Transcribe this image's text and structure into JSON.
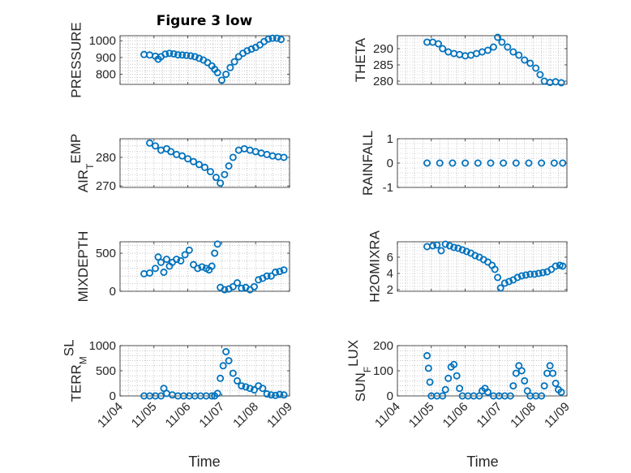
{
  "title": "Figure 3 low",
  "xlabel": "Time",
  "marker_color": "#0072BD",
  "x_tick_labels": [
    "11/04",
    "11/05",
    "11/06",
    "11/07",
    "11/08",
    "11/09"
  ],
  "chart_data": [
    {
      "type": "scatter",
      "ylabel": "PRESSURE",
      "ylim": [
        740,
        1030
      ],
      "yticks": [
        800,
        900,
        1000
      ],
      "yticklabels": [
        "800",
        "900",
        "1000"
      ],
      "grid": true,
      "x": [
        "11/04 17:00",
        "11/04 21:00",
        "11/05 01:00",
        "11/05 03:00",
        "11/05 05:00",
        "11/05 08:00",
        "11/05 11:00",
        "11/05 14:00",
        "11/05 17:00",
        "11/05 20:00",
        "11/05 23:00",
        "11/06 02:00",
        "11/06 05:00",
        "11/06 08:00",
        "11/06 11:00",
        "11/06 14:00",
        "11/06 17:00",
        "11/06 19:00",
        "11/06 21:00",
        "11/07 00:00",
        "11/07 03:00",
        "11/07 06:00",
        "11/07 09:00",
        "11/07 12:00",
        "11/07 15:00",
        "11/07 18:00",
        "11/07 21:00",
        "11/08 00:00",
        "11/08 03:00",
        "11/08 06:00",
        "11/08 09:00",
        "11/08 12:00",
        "11/08 15:00",
        "11/08 18:00"
      ],
      "y": [
        918,
        915,
        908,
        890,
        905,
        920,
        925,
        922,
        916,
        915,
        913,
        910,
        905,
        895,
        885,
        870,
        850,
        830,
        810,
        765,
        800,
        840,
        875,
        905,
        925,
        940,
        950,
        960,
        975,
        995,
        1010,
        1015,
        1015,
        1008
      ]
    },
    {
      "type": "scatter",
      "ylabel": "THETA",
      "ylim": [
        279,
        294
      ],
      "yticks": [
        280,
        285,
        290
      ],
      "yticklabels": [
        "280",
        "285",
        "290"
      ],
      "grid": true,
      "x": [
        "11/04 21:00",
        "11/05 01:00",
        "11/05 05:00",
        "11/05 08:00",
        "11/05 12:00",
        "11/05 16:00",
        "11/05 20:00",
        "11/06 00:00",
        "11/06 04:00",
        "11/06 08:00",
        "11/06 12:00",
        "11/06 16:00",
        "11/06 20:00",
        "11/06 23:00",
        "11/07 02:00",
        "11/07 06:00",
        "11/07 10:00",
        "11/07 14:00",
        "11/07 18:00",
        "11/07 22:00",
        "11/08 02:00",
        "11/08 05:00",
        "11/08 08:00",
        "11/08 12:00",
        "11/08 16:00",
        "11/08 20:00"
      ],
      "y": [
        292,
        292,
        291.5,
        290,
        289,
        288.5,
        288.2,
        287.8,
        288,
        288.5,
        289,
        289.5,
        290.5,
        293.5,
        292,
        290.5,
        289,
        288,
        286.5,
        285.5,
        284,
        282,
        280,
        279.6,
        279.8,
        279.5
      ]
    },
    {
      "type": "scatter",
      "ylabel": "AIR_TEMP",
      "ylim": [
        269.5,
        286.5
      ],
      "yticks": [
        270,
        280
      ],
      "yticklabels": [
        "270",
        "280"
      ],
      "grid": true,
      "x": [
        "11/04 21:00",
        "11/05 01:00",
        "11/05 05:00",
        "11/05 09:00",
        "11/05 12:00",
        "11/05 16:00",
        "11/05 20:00",
        "11/06 00:00",
        "11/06 04:00",
        "11/06 08:00",
        "11/06 12:00",
        "11/06 16:00",
        "11/06 20:00",
        "11/06 23:00",
        "11/07 02:00",
        "11/07 05:00",
        "11/07 08:00",
        "11/07 12:00",
        "11/07 16:00",
        "11/07 20:00",
        "11/08 00:00",
        "11/08 04:00",
        "11/08 08:00",
        "11/08 12:00",
        "11/08 16:00",
        "11/08 20:00"
      ],
      "y": [
        285,
        284,
        282.5,
        283,
        282,
        281,
        280.5,
        279.5,
        278.5,
        277.5,
        276.5,
        275,
        273,
        271,
        274,
        277,
        280,
        282.5,
        283,
        282.5,
        282,
        281.5,
        281,
        280.5,
        280.2,
        280
      ]
    },
    {
      "type": "scatter",
      "ylabel": "RAINFALL",
      "ylim": [
        -1,
        1
      ],
      "yticks": [
        -1,
        0,
        1
      ],
      "yticklabels": [
        "-1",
        "0",
        "1"
      ],
      "grid": true,
      "x": [
        "11/04 21:00",
        "11/05 06:00",
        "11/05 15:00",
        "11/06 00:00",
        "11/06 09:00",
        "11/06 18:00",
        "11/07 03:00",
        "11/07 12:00",
        "11/07 21:00",
        "11/08 06:00",
        "11/08 15:00",
        "11/08 21:00"
      ],
      "y": [
        0,
        0,
        0,
        0,
        0,
        0,
        0,
        0,
        0,
        0,
        0,
        0
      ]
    },
    {
      "type": "scatter",
      "ylabel": "MIXDEPTH",
      "ylim": [
        0,
        650
      ],
      "yticks": [
        0,
        500
      ],
      "yticklabels": [
        "0",
        "500"
      ],
      "grid": true,
      "x": [
        "11/04 17:00",
        "11/04 21:00",
        "11/05 01:00",
        "11/05 03:00",
        "11/05 05:00",
        "11/05 07:00",
        "11/05 09:00",
        "11/05 11:00",
        "11/05 13:00",
        "11/05 16:00",
        "11/05 19:00",
        "11/05 22:00",
        "11/06 01:00",
        "11/06 04:00",
        "11/06 07:00",
        "11/06 10:00",
        "11/06 13:00",
        "11/06 15:00",
        "11/06 17:00",
        "11/06 19:00",
        "11/06 21:00",
        "11/06 23:00",
        "11/07 02:00",
        "11/07 05:00",
        "11/07 08:00",
        "11/07 11:00",
        "11/07 14:00",
        "11/07 17:00",
        "11/07 20:00",
        "11/07 23:00",
        "11/08 02:00",
        "11/08 05:00",
        "11/08 08:00",
        "11/08 11:00",
        "11/08 14:00",
        "11/08 17:00",
        "11/08 20:00"
      ],
      "y": [
        230,
        240,
        300,
        450,
        380,
        250,
        420,
        330,
        380,
        420,
        400,
        480,
        540,
        350,
        300,
        320,
        300,
        280,
        330,
        500,
        620,
        50,
        20,
        30,
        60,
        110,
        40,
        50,
        20,
        60,
        150,
        170,
        200,
        200,
        250,
        260,
        280
      ]
    },
    {
      "type": "scatter",
      "ylabel": "H2OMIXRA",
      "ylim": [
        1.8,
        7.9
      ],
      "yticks": [
        2,
        4,
        6
      ],
      "yticklabels": [
        "2",
        "4",
        "6"
      ],
      "grid": true,
      "x": [
        "11/04 21:00",
        "11/05 01:00",
        "11/05 04:00",
        "11/05 07:00",
        "11/05 10:00",
        "11/05 13:00",
        "11/05 16:00",
        "11/05 19:00",
        "11/05 22:00",
        "11/06 01:00",
        "11/06 04:00",
        "11/06 07:00",
        "11/06 10:00",
        "11/06 13:00",
        "11/06 16:00",
        "11/06 19:00",
        "11/06 21:00",
        "11/06 23:00",
        "11/07 01:00",
        "11/07 04:00",
        "11/07 07:00",
        "11/07 10:00",
        "11/07 13:00",
        "11/07 16:00",
        "11/07 19:00",
        "11/07 22:00",
        "11/08 01:00",
        "11/08 04:00",
        "11/08 07:00",
        "11/08 10:00",
        "11/08 13:00",
        "11/08 16:00",
        "11/08 19:00",
        "11/08 21:00"
      ],
      "y": [
        7.3,
        7.4,
        7.5,
        6.8,
        7.6,
        7.4,
        7.2,
        7.1,
        6.9,
        6.7,
        6.5,
        6.2,
        6.0,
        5.7,
        5.4,
        5.0,
        4.5,
        3.5,
        2.2,
        2.8,
        3.0,
        3.2,
        3.5,
        3.7,
        3.8,
        3.9,
        3.9,
        4.0,
        4.1,
        4.2,
        4.5,
        4.9,
        5.0,
        4.9
      ]
    },
    {
      "type": "scatter",
      "ylabel": "TERR_MSL",
      "ylim": [
        0,
        1000
      ],
      "yticks": [
        0,
        500,
        1000
      ],
      "yticklabels": [
        "0",
        "500",
        "1000"
      ],
      "grid": true,
      "x": [
        "11/04 17:00",
        "11/04 21:00",
        "11/05 01:00",
        "11/05 05:00",
        "11/05 07:00",
        "11/05 09:00",
        "11/05 13:00",
        "11/05 17:00",
        "11/05 21:00",
        "11/06 01:00",
        "11/06 05:00",
        "11/06 09:00",
        "11/06 13:00",
        "11/06 17:00",
        "11/06 19:00",
        "11/06 21:00",
        "11/06 23:00",
        "11/07 01:00",
        "11/07 03:00",
        "11/07 05:00",
        "11/07 08:00",
        "11/07 11:00",
        "11/07 14:00",
        "11/07 17:00",
        "11/07 20:00",
        "11/07 23:00",
        "11/08 02:00",
        "11/08 05:00",
        "11/08 08:00",
        "11/08 11:00",
        "11/08 14:00",
        "11/08 17:00",
        "11/08 20:00"
      ],
      "y": [
        0,
        0,
        0,
        0,
        150,
        50,
        20,
        0,
        0,
        0,
        0,
        0,
        0,
        0,
        0,
        50,
        350,
        600,
        880,
        700,
        450,
        300,
        200,
        180,
        150,
        120,
        200,
        150,
        40,
        20,
        10,
        30,
        20
      ]
    },
    {
      "type": "scatter",
      "ylabel": "SUN_FLUX",
      "ylim": [
        0,
        200
      ],
      "yticks": [
        0,
        100,
        200
      ],
      "yticklabels": [
        "0",
        "100",
        "200"
      ],
      "grid": true,
      "x": [
        "11/04 21:00",
        "11/04 22:00",
        "11/04 23:00",
        "11/05 00:00",
        "11/05 04:00",
        "11/05 08:00",
        "11/05 10:00",
        "11/05 12:00",
        "11/05 14:00",
        "11/05 16:00",
        "11/05 18:00",
        "11/05 20:00",
        "11/05 22:00",
        "11/06 02:00",
        "11/06 06:00",
        "11/06 10:00",
        "11/06 12:00",
        "11/06 14:00",
        "11/06 16:00",
        "11/06 20:00",
        "11/07 00:00",
        "11/07 04:00",
        "11/07 08:00",
        "11/07 10:00",
        "11/07 12:00",
        "11/07 14:00",
        "11/07 16:00",
        "11/07 18:00",
        "11/07 20:00",
        "11/07 22:00",
        "11/08 02:00",
        "11/08 06:00",
        "11/08 08:00",
        "11/08 10:00",
        "11/08 12:00",
        "11/08 14:00",
        "11/08 16:00",
        "11/08 18:00",
        "11/08 20:00"
      ],
      "y": [
        160,
        110,
        55,
        0,
        0,
        0,
        25,
        70,
        115,
        125,
        80,
        30,
        0,
        0,
        0,
        0,
        20,
        30,
        15,
        0,
        0,
        0,
        0,
        40,
        90,
        120,
        100,
        60,
        20,
        0,
        0,
        0,
        40,
        90,
        120,
        90,
        50,
        25,
        15
      ]
    }
  ]
}
